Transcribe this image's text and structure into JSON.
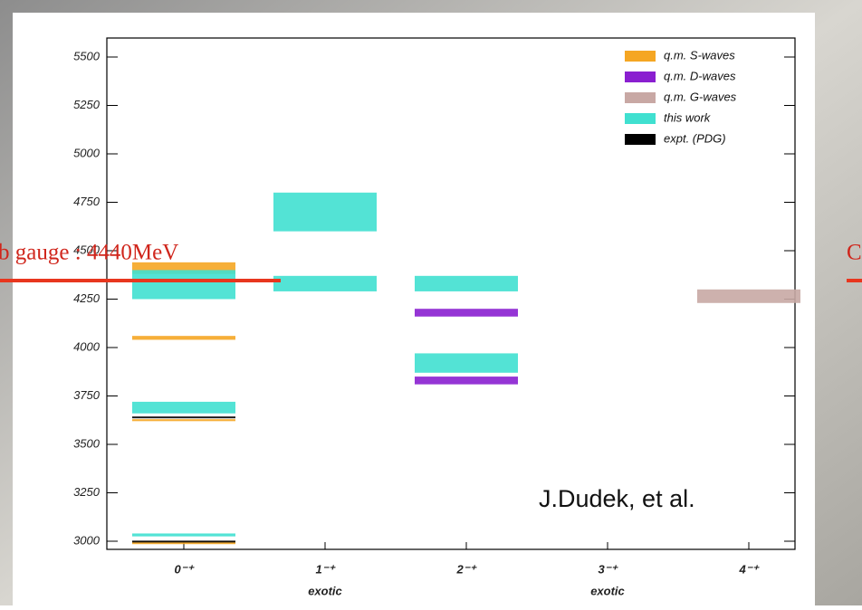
{
  "chart_data": {
    "type": "range-bar",
    "categories": [
      "0⁻⁺",
      "1⁻⁺",
      "2⁻⁺",
      "3⁻⁺",
      "4⁻⁺"
    ],
    "category_notes": [
      null,
      "exotic",
      null,
      "exotic",
      null
    ],
    "ylim": [
      3000,
      5500
    ],
    "yticks": [
      3000,
      3250,
      3500,
      3750,
      4000,
      4250,
      4500,
      4750,
      5000,
      5250,
      5500
    ],
    "series": [
      {
        "name": "q.m. S-waves",
        "color": "#f5a623",
        "x": [
          "0⁻⁺",
          "0⁻⁺",
          "0⁻⁺",
          "0⁻⁺"
        ],
        "low": [
          4380,
          4040,
          3620,
          2985
        ],
        "high": [
          4440,
          4060,
          3630,
          3000
        ]
      },
      {
        "name": "q.m. D-waves",
        "color": "#8a1fd0",
        "x": [
          "2⁻⁺",
          "2⁻⁺"
        ],
        "low": [
          4160,
          3810
        ],
        "high": [
          4200,
          3850
        ]
      },
      {
        "name": "q.m. G-waves",
        "color": "#c8a8a4",
        "x": [
          "4⁻⁺"
        ],
        "low": [
          4230
        ],
        "high": [
          4300
        ]
      },
      {
        "name": "this work",
        "color": "#40e0d0",
        "x": [
          "0⁻⁺",
          "0⁻⁺",
          "0⁻⁺",
          "1⁻⁺",
          "1⁻⁺",
          "2⁻⁺",
          "2⁻⁺"
        ],
        "low": [
          4250,
          3660,
          3025,
          4600,
          4290,
          4290,
          3870
        ],
        "high": [
          4400,
          3720,
          3040,
          4800,
          4370,
          4370,
          3970
        ]
      },
      {
        "name": "expt. (PDG)",
        "color": "#000000",
        "x": [
          "0⁻⁺",
          "0⁻⁺"
        ],
        "low": [
          3636,
          2996
        ],
        "high": [
          3644,
          3003
        ]
      }
    ]
  },
  "annotations": {
    "author": "J.Dudek, et al.",
    "gauge_left": "b gauge : 4440MeV",
    "gauge_right": "C"
  }
}
